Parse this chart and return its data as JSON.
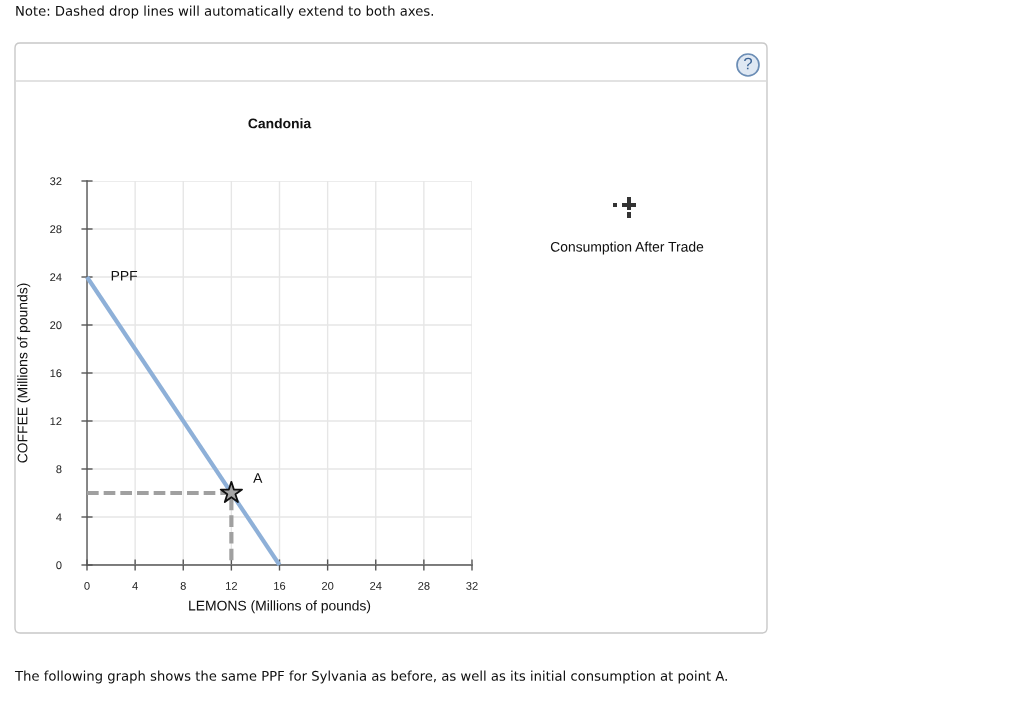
{
  "chart_data": {
    "type": "line",
    "title": "Candonia",
    "xlabel": "LEMONS (Millions of pounds)",
    "ylabel": "COFFEE (Millions of pounds)",
    "xlim": [
      0,
      32
    ],
    "ylim": [
      0,
      32
    ],
    "xticks": [
      0,
      4,
      8,
      12,
      16,
      20,
      24,
      28,
      32
    ],
    "yticks": [
      0,
      4,
      8,
      12,
      16,
      20,
      24,
      28,
      32
    ],
    "grid": true,
    "series": [
      {
        "name": "PPF",
        "color": "#8eb0d8",
        "x": [
          0,
          16
        ],
        "values": [
          24,
          0
        ],
        "line_style": "solid"
      },
      {
        "color": "#a0a0a0",
        "x": [
          0,
          12,
          12
        ],
        "values": [
          6,
          6,
          0
        ],
        "line_style": "dashed"
      },
      {
        "name": "A",
        "type": "scatter",
        "color": "#a6a6a6",
        "x": [
          12
        ],
        "values": [
          6
        ],
        "marker": "star"
      }
    ],
    "annotations": [
      "Note: Dashed drop lines will automatically extend to both axes.",
      "?",
      "Consumption After Trade",
      "The following graph shows the same PPF for Sylvania as before, as well as its initial consumption at point A."
    ]
  }
}
